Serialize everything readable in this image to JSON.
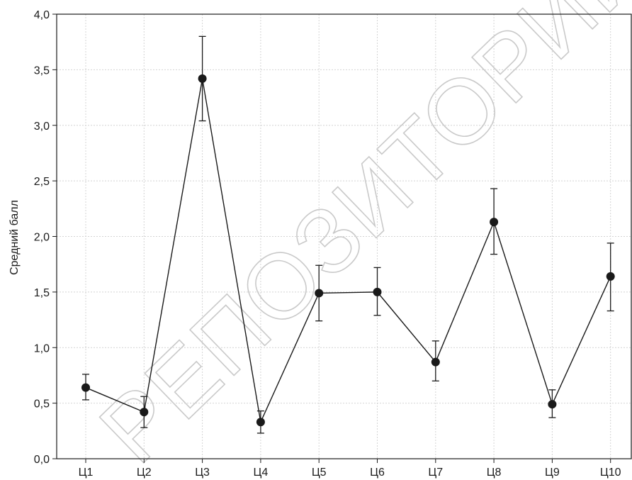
{
  "chart_data": {
    "type": "line",
    "title": "",
    "xlabel": "",
    "ylabel": "Средний балл",
    "categories": [
      "Ц1",
      "Ц2",
      "Ц3",
      "Ц4",
      "Ц5",
      "Ц6",
      "Ц7",
      "Ц8",
      "Ц9",
      "Ц10"
    ],
    "series": [
      {
        "values": [
          0.64,
          0.42,
          3.42,
          0.33,
          1.49,
          1.5,
          0.87,
          2.13,
          0.49,
          1.64
        ],
        "error_low": [
          0.53,
          0.28,
          3.04,
          0.23,
          1.24,
          1.29,
          0.7,
          1.84,
          0.37,
          1.33
        ],
        "error_high": [
          0.76,
          0.56,
          3.8,
          0.43,
          1.74,
          1.72,
          1.06,
          2.43,
          0.62,
          1.94
        ]
      }
    ],
    "ylim": [
      0,
      4
    ],
    "yticks": [
      "0,0",
      "0,5",
      "1,0",
      "1,5",
      "2,0",
      "2,5",
      "3,0",
      "3,5",
      "4,0"
    ],
    "ytick_values": [
      0,
      0.5,
      1.0,
      1.5,
      2.0,
      2.5,
      3.0,
      3.5,
      4.0
    ],
    "grid": true,
    "marker": "filled-circle",
    "line_color": "#1a1a1a",
    "grid_color": "#d4d4d4"
  },
  "watermark": "РЕПОЗИТОРИЙ БГПУ"
}
